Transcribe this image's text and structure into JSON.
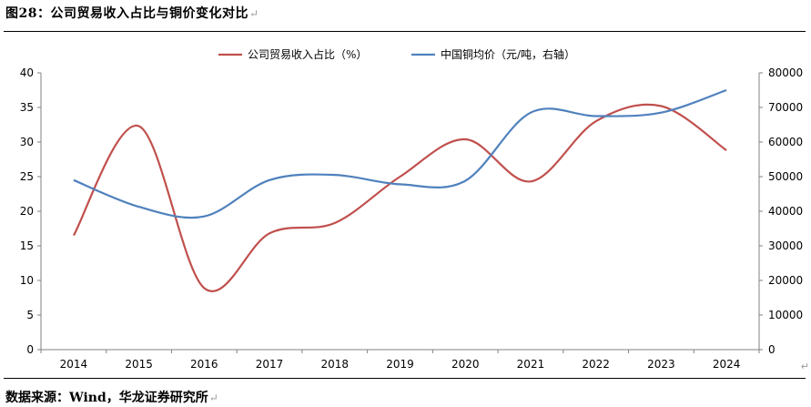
{
  "title": "图28：公司贸易收入占比与铜价变化对比",
  "return_mark": "↵",
  "source": "数据来源：Wind，华龙证券研究所",
  "chart_data": {
    "type": "line",
    "categories": [
      "2014",
      "2015",
      "2016",
      "2017",
      "2018",
      "2019",
      "2020",
      "2021",
      "2022",
      "2023",
      "2024"
    ],
    "series": [
      {
        "name": "公司贸易收入占比（%）",
        "axis": "left",
        "color": "#c0504d",
        "values": [
          16.5,
          32.3,
          8.9,
          16.8,
          18.3,
          25.0,
          30.4,
          24.3,
          33.0,
          35.2,
          28.8
        ]
      },
      {
        "name": "中国铜均价（元/吨，右轴）",
        "axis": "right",
        "color": "#4f81bd",
        "values": [
          49000,
          41300,
          38500,
          49000,
          50500,
          47800,
          48800,
          68500,
          67500,
          68500,
          75000
        ]
      }
    ],
    "y_left": {
      "min": 0,
      "max": 40,
      "ticks": [
        0,
        5,
        10,
        15,
        20,
        25,
        30,
        35,
        40
      ]
    },
    "y_right": {
      "min": 0,
      "max": 80000,
      "ticks": [
        0,
        10000,
        20000,
        30000,
        40000,
        50000,
        60000,
        70000,
        80000
      ]
    },
    "grid": false,
    "legend": "top-center"
  }
}
